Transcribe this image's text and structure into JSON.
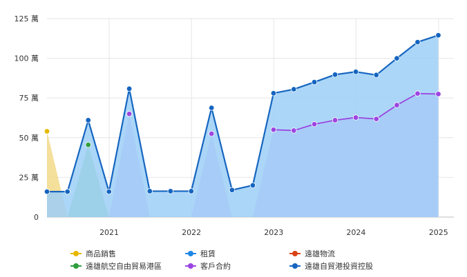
{
  "chart_data": {
    "type": "area",
    "y_unit": "萬",
    "ylim": [
      0,
      125
    ],
    "y_ticks": [
      {
        "value": 0,
        "label": "0"
      },
      {
        "value": 25,
        "label": "25 萬"
      },
      {
        "value": 50,
        "label": "50 萬"
      },
      {
        "value": 75,
        "label": "75 萬"
      },
      {
        "value": 100,
        "label": "100 萬"
      },
      {
        "value": 125,
        "label": "125 萬"
      }
    ],
    "x_range": [
      "2020-03-31",
      "2025-03-10"
    ],
    "x_ticks": [
      {
        "date": "2021-01-01",
        "label": "2021"
      },
      {
        "date": "2022-01-01",
        "label": "2022"
      },
      {
        "date": "2023-01-01",
        "label": "2023"
      },
      {
        "date": "2024-01-01",
        "label": "2024"
      },
      {
        "date": "2025-01-01",
        "label": "2025"
      }
    ],
    "grid": true,
    "legend_position": "bottom",
    "series": [
      {
        "name": "商品銷售",
        "color": "#e6b800",
        "fill": "#f2d98a",
        "points": [
          [
            "2020-03-31",
            54
          ],
          [
            "2020-06-30",
            0
          ]
        ]
      },
      {
        "name": "租賃",
        "color": "#1e88e5",
        "fill": "#90c7f5",
        "points": []
      },
      {
        "name": "遠雄物流",
        "color": "#d84315",
        "fill": "#f2a48c",
        "points": []
      },
      {
        "name": "遠雄航空自由貿易港區",
        "color": "#2e9e3e",
        "fill": "#93d08a",
        "points": [
          [
            "2020-06-30",
            0
          ],
          [
            "2020-09-30",
            45.5
          ],
          [
            "2020-12-31",
            0
          ]
        ]
      },
      {
        "name": "客戶合約",
        "color": "#9c45e0",
        "fill": "#d3aef5",
        "points": [
          [
            "2020-12-31",
            0
          ],
          [
            "2021-03-31",
            65
          ],
          [
            "2021-06-30",
            0
          ],
          [
            "2021-12-31",
            0
          ],
          [
            "2022-03-31",
            52.5
          ],
          [
            "2022-06-30",
            0
          ],
          [
            "2022-09-30",
            0
          ],
          [
            "2022-12-31",
            55
          ],
          [
            "2023-03-31",
            54.5
          ],
          [
            "2023-06-30",
            58.5
          ],
          [
            "2023-09-30",
            61
          ],
          [
            "2023-12-31",
            62.7
          ],
          [
            "2024-03-31",
            61.8
          ],
          [
            "2024-06-30",
            70.5
          ],
          [
            "2024-09-30",
            77.8
          ],
          [
            "2024-12-31",
            77.5
          ]
        ]
      },
      {
        "name": "遠雄自貿港投資控股",
        "color": "#1565c0",
        "fill": "#9ccff7",
        "points": [
          [
            "2020-03-31",
            16
          ],
          [
            "2020-06-30",
            16
          ],
          [
            "2020-09-30",
            61
          ],
          [
            "2020-12-31",
            16
          ],
          [
            "2021-03-31",
            80.8
          ],
          [
            "2021-06-30",
            16.3
          ],
          [
            "2021-09-30",
            16.3
          ],
          [
            "2021-12-31",
            16.3
          ],
          [
            "2022-03-31",
            68.8
          ],
          [
            "2022-06-30",
            17
          ],
          [
            "2022-09-30",
            20
          ],
          [
            "2022-12-31",
            78
          ],
          [
            "2023-03-31",
            80.5
          ],
          [
            "2023-06-30",
            85
          ],
          [
            "2023-09-30",
            89.7
          ],
          [
            "2023-12-31",
            91.5
          ],
          [
            "2024-03-31",
            89.5
          ],
          [
            "2024-06-30",
            100
          ],
          [
            "2024-09-30",
            110.2
          ],
          [
            "2024-12-31",
            114.5
          ]
        ]
      }
    ]
  }
}
